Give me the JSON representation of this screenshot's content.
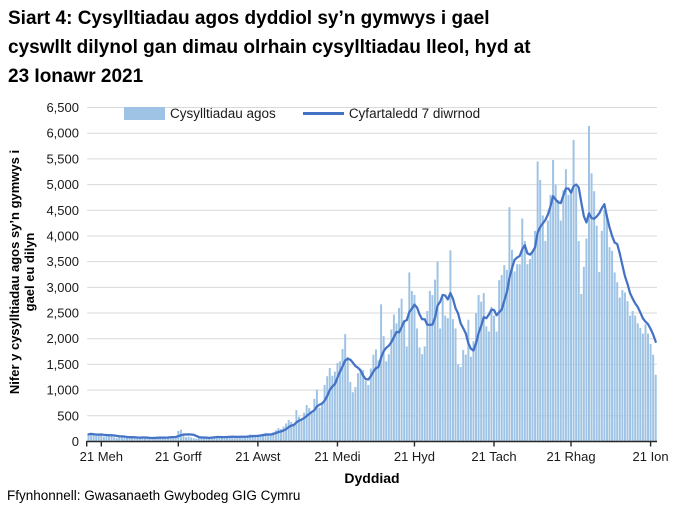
{
  "title": "Siart 4: Cysylltiadau agos dyddiol sy’n gymwys i gael cyswllt dilynol gan dimau olrhain cysylltiadau lleol, hyd at 23 Ionawr 2021",
  "title_lines": [
    "Siart 4: Cysylltiadau agos dyddiol sy’n gymwys i gael",
    "cyswllt dilynol gan dimau olrhain cysylltiadau lleol, hyd at",
    "23 Ionawr 2021"
  ],
  "legend": {
    "bars_label": "Cysylltiadau agos",
    "line_label": "Cyfartaledd 7 diwrnod"
  },
  "footer": {
    "source": "Ffynhonnell: Gwasanaeth Gwybodeg GIG Cymru"
  },
  "chart_data": {
    "type": "bar",
    "title": "Siart 4: Cysylltiadau agos dyddiol sy’n gymwys i gael cyswllt dilynol gan dimau olrhain cysylltiadau lleol, hyd at 23 Ionawr 2021",
    "xlabel": "Dyddiad",
    "ylabel": "Nifer y cysylltiadau agos sy’n gymwys i gael eu dilyn",
    "ylabel_lines": [
      "Nifer y cysylltiadau agos sy’n gymwys i",
      "gael eu dilyn"
    ],
    "ylim": [
      0,
      6500
    ],
    "grid": true,
    "legend_position": "top-left-inside",
    "colors": {
      "bars": "#9EC3E5",
      "line": "#4472C4",
      "gridline": "#D9D9D9",
      "axis": "#262626"
    },
    "y_tick_values": [
      0,
      500,
      1000,
      1500,
      2000,
      2500,
      3000,
      3500,
      4000,
      4500,
      5000,
      5500,
      6000,
      6500
    ],
    "y_tick_labels": [
      "0",
      "500",
      "1,000",
      "1,500",
      "2,000",
      "2,500",
      "3,000",
      "3,500",
      "4,000",
      "4,500",
      "5,000",
      "5,500",
      "6,000",
      "6,500"
    ],
    "x_ticks": [
      {
        "label": "21 Meh",
        "day": 5
      },
      {
        "label": "21 Gorff",
        "day": 35
      },
      {
        "label": "21 Awst",
        "day": 66
      },
      {
        "label": "21 Medi",
        "day": 97
      },
      {
        "label": "21 Hyd",
        "day": 127
      },
      {
        "label": "21 Tach",
        "day": 158
      },
      {
        "label": "21 Rhag",
        "day": 188
      },
      {
        "label": "21 Ion",
        "day": 219
      }
    ],
    "series": [
      {
        "name": "Cysylltiadau agos",
        "type": "bar",
        "values": [
          140,
          155,
          130,
          115,
          125,
          150,
          95,
          110,
          130,
          120,
          85,
          70,
          100,
          90,
          80,
          75,
          85,
          95,
          60,
          55,
          80,
          90,
          85,
          70,
          50,
          45,
          75,
          95,
          100,
          90,
          65,
          70,
          85,
          95,
          110,
          205,
          230,
          150,
          85,
          95,
          80,
          65,
          55,
          75,
          90,
          85,
          70,
          60,
          90,
          100,
          110,
          95,
          75,
          65,
          85,
          105,
          115,
          100,
          90,
          80,
          70,
          95,
          120,
          140,
          130,
          110,
          100,
          125,
          150,
          170,
          160,
          140,
          180,
          220,
          260,
          240,
          290,
          350,
          420,
          380,
          310,
          610,
          480,
          430,
          560,
          710,
          650,
          590,
          830,
          1010,
          660,
          730,
          1100,
          1270,
          1430,
          1280,
          1360,
          1530,
          1560,
          1800,
          2090,
          1650,
          1160,
          960,
          1060,
          1330,
          1420,
          1390,
          1180,
          1100,
          1420,
          1690,
          1790,
          1580,
          2670,
          2050,
          1560,
          1700,
          2180,
          2470,
          2300,
          2600,
          2780,
          2350,
          1850,
          3290,
          2930,
          2850,
          2200,
          1830,
          1700,
          1850,
          2540,
          2930,
          2850,
          3150,
          3500,
          2200,
          2800,
          2450,
          2400,
          3720,
          2380,
          2200,
          1500,
          1450,
          1780,
          1690,
          2370,
          1650,
          1950,
          2500,
          2850,
          2720,
          2890,
          2240,
          2140,
          2620,
          2450,
          2140,
          3140,
          3240,
          3430,
          3340,
          4560,
          3730,
          3310,
          3450,
          3450,
          4340,
          3900,
          3450,
          3550,
          3680,
          4100,
          5450,
          5090,
          4400,
          3900,
          4300,
          4800,
          5480,
          5000,
          4700,
          4300,
          4890,
          5300,
          4800,
          4900,
          5870,
          4950,
          3900,
          2870,
          3400,
          3950,
          6140,
          5220,
          4870,
          4200,
          3300,
          4100,
          4500,
          4420,
          3780,
          3710,
          3290,
          3100,
          2800,
          2950,
          2900,
          2730,
          2450,
          2540,
          2450,
          2300,
          2210,
          2100,
          2280,
          2100,
          1900,
          1690,
          1300
        ]
      },
      {
        "name": "Cyfartaledd 7 diwrnod",
        "type": "line",
        "derived": "7-day trailing mean of bar series"
      }
    ]
  }
}
